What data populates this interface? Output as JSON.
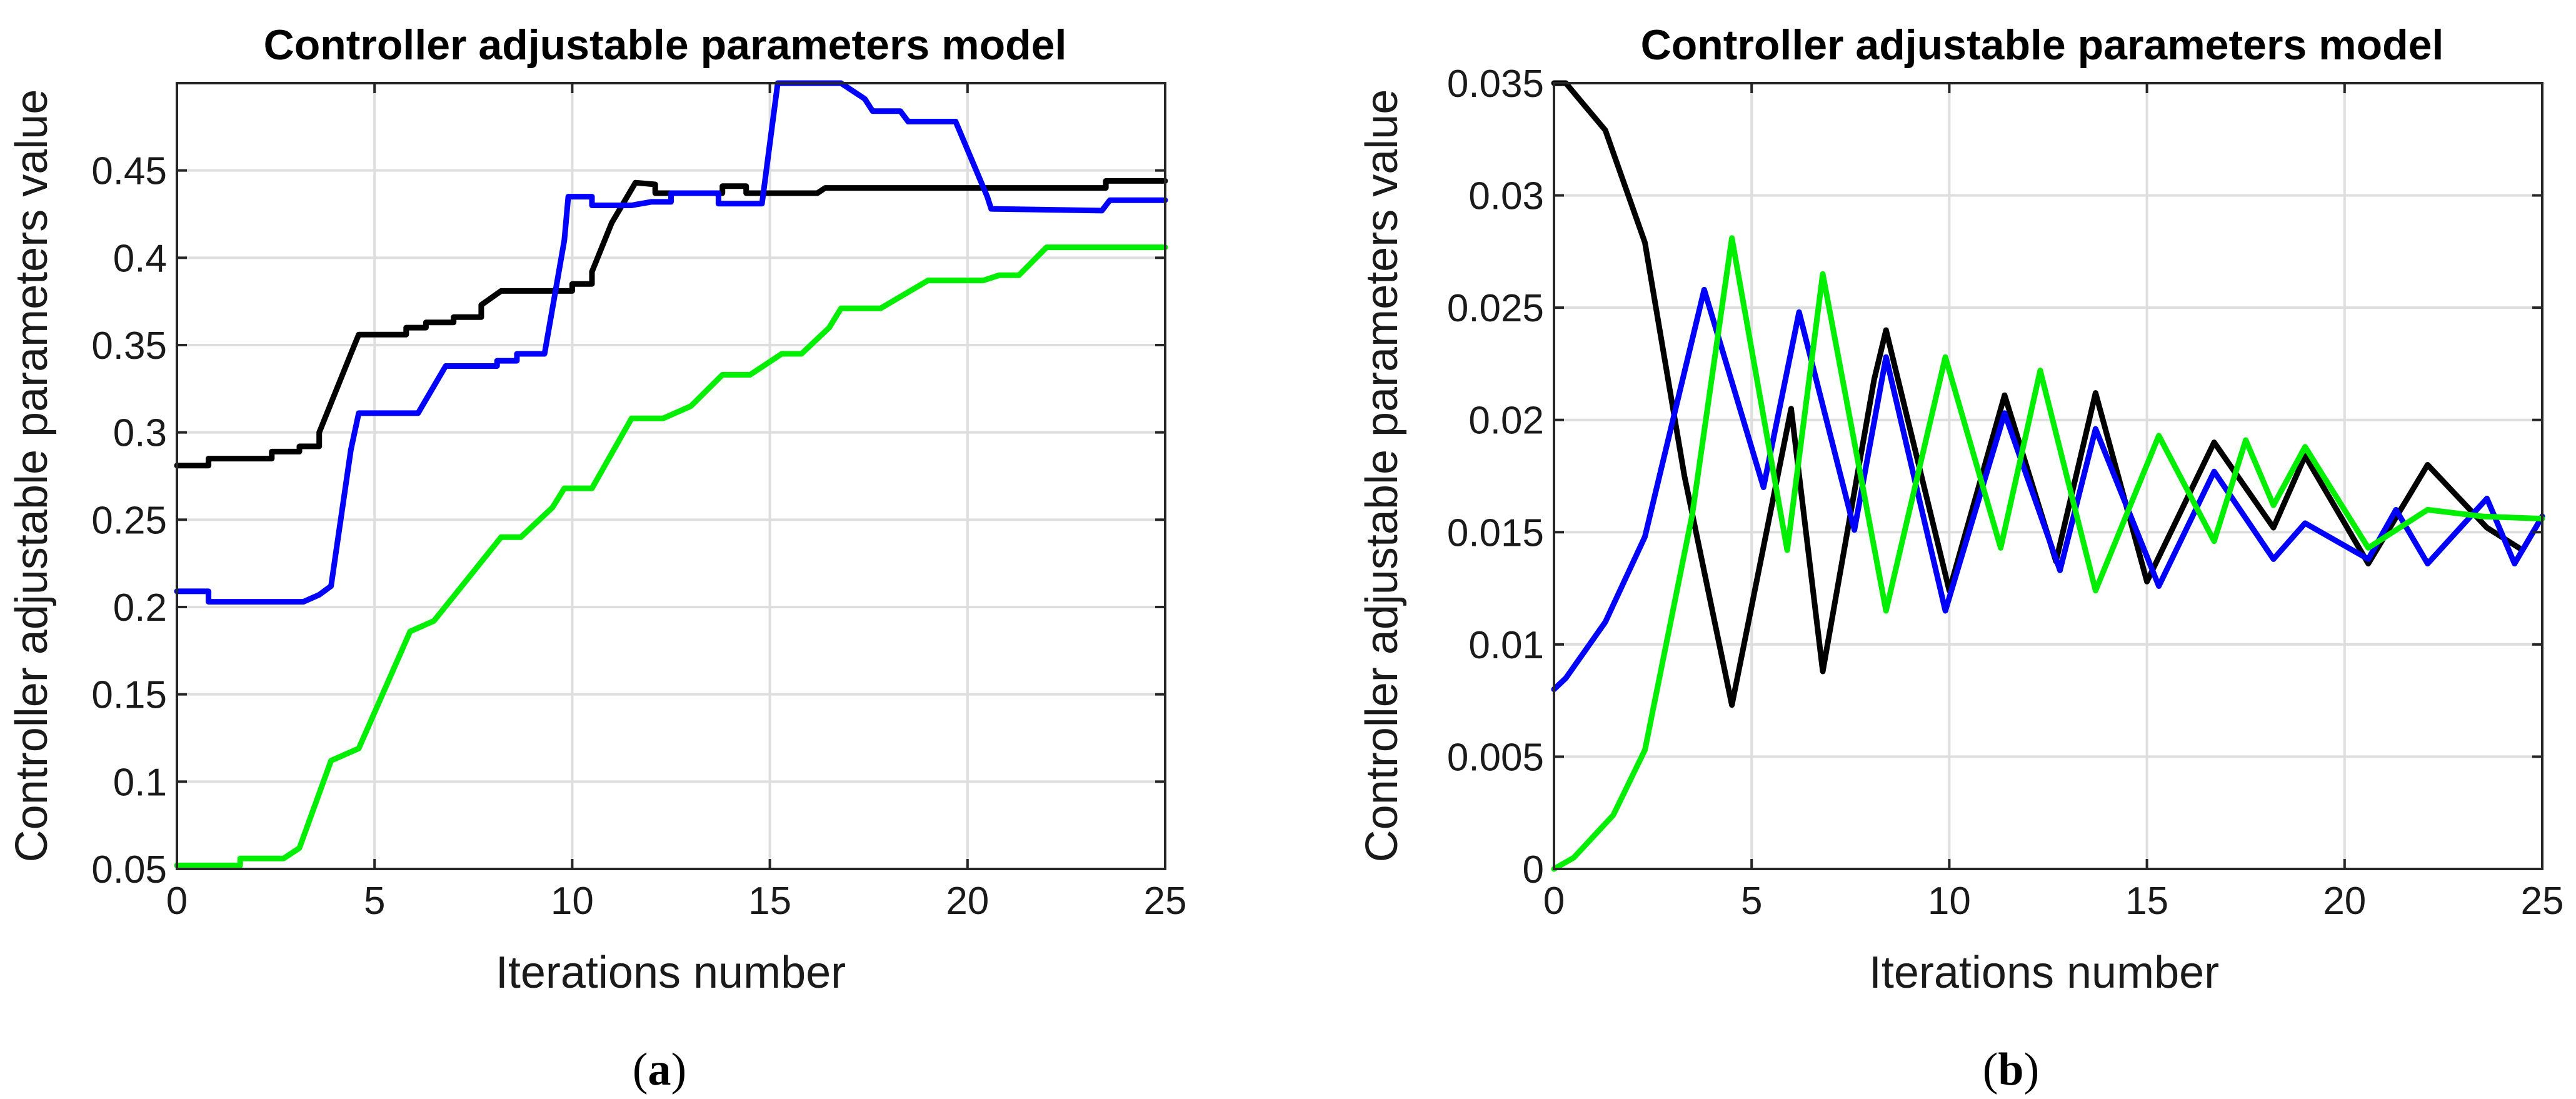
{
  "chart_data": [
    {
      "type": "line",
      "panel_label": "a",
      "title": "Controller adjustable parameters model",
      "xlabel": "Iterations number",
      "ylabel": "Controller adjustable parameters value",
      "xlim": [
        0,
        25
      ],
      "ylim": [
        0.05,
        0.5
      ],
      "xticks": [
        0,
        5,
        10,
        15,
        20,
        25
      ],
      "yticks": [
        0.05,
        0.1,
        0.15,
        0.2,
        0.25,
        0.3,
        0.35,
        0.4,
        0.45
      ],
      "grid": true,
      "series": [
        {
          "color": "#000000",
          "x": [
            0,
            0.8,
            0.8,
            2.4,
            2.4,
            3.1,
            3.1,
            3.6,
            3.6,
            4.4,
            4.6,
            5.8,
            5.8,
            6.3,
            6.3,
            7.0,
            7.0,
            7.7,
            7.7,
            8.2,
            8.5,
            10.0,
            10.0,
            10.5,
            10.5,
            11.0,
            11.6,
            12.1,
            12.1,
            13.8,
            13.8,
            14.4,
            14.4,
            16.2,
            16.4,
            23.5,
            23.5,
            25
          ],
          "y": [
            0.281,
            0.281,
            0.285,
            0.285,
            0.289,
            0.289,
            0.292,
            0.292,
            0.3,
            0.345,
            0.356,
            0.356,
            0.36,
            0.36,
            0.363,
            0.363,
            0.366,
            0.366,
            0.373,
            0.381,
            0.381,
            0.381,
            0.385,
            0.385,
            0.392,
            0.42,
            0.443,
            0.442,
            0.437,
            0.437,
            0.441,
            0.441,
            0.437,
            0.437,
            0.44,
            0.44,
            0.444,
            0.444
          ]
        },
        {
          "color": "#0000ff",
          "x": [
            0,
            0.8,
            0.8,
            3.2,
            3.6,
            3.9,
            4.4,
            4.6,
            6.1,
            6.8,
            8.1,
            8.1,
            8.6,
            8.6,
            9.3,
            9.3,
            9.8,
            9.9,
            10.5,
            10.5,
            11.0,
            11.5,
            12.0,
            12.5,
            12.5,
            13.7,
            13.7,
            14.8,
            15.2,
            16.8,
            17.4,
            17.6,
            18.3,
            18.5,
            19.7,
            20.5,
            20.6,
            23.4,
            23.6,
            25
          ],
          "y": [
            0.209,
            0.209,
            0.203,
            0.203,
            0.207,
            0.212,
            0.29,
            0.311,
            0.311,
            0.338,
            0.338,
            0.341,
            0.341,
            0.345,
            0.345,
            0.345,
            0.41,
            0.435,
            0.435,
            0.43,
            0.43,
            0.43,
            0.432,
            0.432,
            0.437,
            0.437,
            0.431,
            0.431,
            0.5,
            0.5,
            0.491,
            0.484,
            0.484,
            0.478,
            0.478,
            0.435,
            0.428,
            0.427,
            0.433,
            0.433
          ]
        },
        {
          "color": "#00ee00",
          "x": [
            0,
            1.6,
            1.6,
            2.7,
            3.1,
            3.9,
            4.6,
            5.9,
            6.5,
            8.2,
            8.7,
            9.5,
            9.8,
            10.5,
            11.5,
            12.3,
            13.0,
            13.8,
            14.5,
            15.3,
            15.8,
            16.5,
            16.8,
            17.8,
            19.0,
            20.4,
            20.8,
            21.3,
            22.0,
            25
          ],
          "y": [
            0.052,
            0.052,
            0.056,
            0.056,
            0.062,
            0.112,
            0.119,
            0.186,
            0.192,
            0.24,
            0.24,
            0.257,
            0.268,
            0.268,
            0.308,
            0.308,
            0.315,
            0.333,
            0.333,
            0.345,
            0.345,
            0.36,
            0.371,
            0.371,
            0.387,
            0.387,
            0.39,
            0.39,
            0.406,
            0.406
          ]
        }
      ]
    },
    {
      "type": "line",
      "panel_label": "b",
      "title": "Controller adjustable parameters model",
      "xlabel": "Iterations number",
      "ylabel": "Controller adjustable parameters value",
      "xlim": [
        0,
        25
      ],
      "ylim": [
        0,
        0.035
      ],
      "xticks": [
        0,
        5,
        10,
        15,
        20,
        25
      ],
      "yticks": [
        0,
        0.005,
        0.01,
        0.015,
        0.02,
        0.025,
        0.03,
        0.035
      ],
      "grid": true,
      "series": [
        {
          "color": "#000000",
          "x": [
            0,
            0.3,
            1.3,
            2.3,
            3.3,
            4.5,
            6.0,
            6.8,
            8.1,
            8.4,
            10.0,
            11.4,
            12.7,
            13.7,
            15.0,
            16.7,
            18.2,
            19.0,
            20.6,
            22.1,
            23.6,
            24.5,
            25
          ],
          "y": [
            0.035,
            0.035,
            0.0329,
            0.0279,
            0.0175,
            0.0073,
            0.0205,
            0.0088,
            0.0218,
            0.024,
            0.0124,
            0.0211,
            0.0137,
            0.0212,
            0.0128,
            0.019,
            0.0152,
            0.0184,
            0.0136,
            0.018,
            0.0152,
            0.0142,
            0.0157
          ]
        },
        {
          "color": "#0000ff",
          "x": [
            0,
            0.3,
            1.3,
            2.3,
            3.8,
            5.3,
            6.2,
            7.6,
            8.4,
            9.9,
            11.4,
            12.8,
            13.7,
            15.3,
            16.7,
            18.2,
            19.0,
            20.6,
            21.3,
            22.1,
            23.6,
            24.3,
            25
          ],
          "y": [
            0.008,
            0.0085,
            0.011,
            0.0148,
            0.0258,
            0.017,
            0.0248,
            0.0151,
            0.0228,
            0.0115,
            0.0203,
            0.0133,
            0.0196,
            0.0126,
            0.0177,
            0.0138,
            0.0154,
            0.0138,
            0.016,
            0.0136,
            0.0165,
            0.0136,
            0.0157
          ]
        },
        {
          "color": "#00ee00",
          "x": [
            0,
            0.5,
            1.5,
            2.3,
            3.5,
            4.5,
            5.9,
            6.8,
            8.4,
            9.9,
            11.3,
            12.3,
            13.7,
            15.3,
            16.7,
            17.5,
            18.2,
            19.0,
            20.6,
            22.1,
            23.5,
            25
          ],
          "y": [
            0,
            0.0005,
            0.0024,
            0.0053,
            0.0158,
            0.0281,
            0.0142,
            0.0265,
            0.0115,
            0.0228,
            0.0143,
            0.0222,
            0.0124,
            0.0193,
            0.0146,
            0.0191,
            0.0162,
            0.0188,
            0.0143,
            0.016,
            0.0157,
            0.0156
          ]
        }
      ]
    }
  ]
}
